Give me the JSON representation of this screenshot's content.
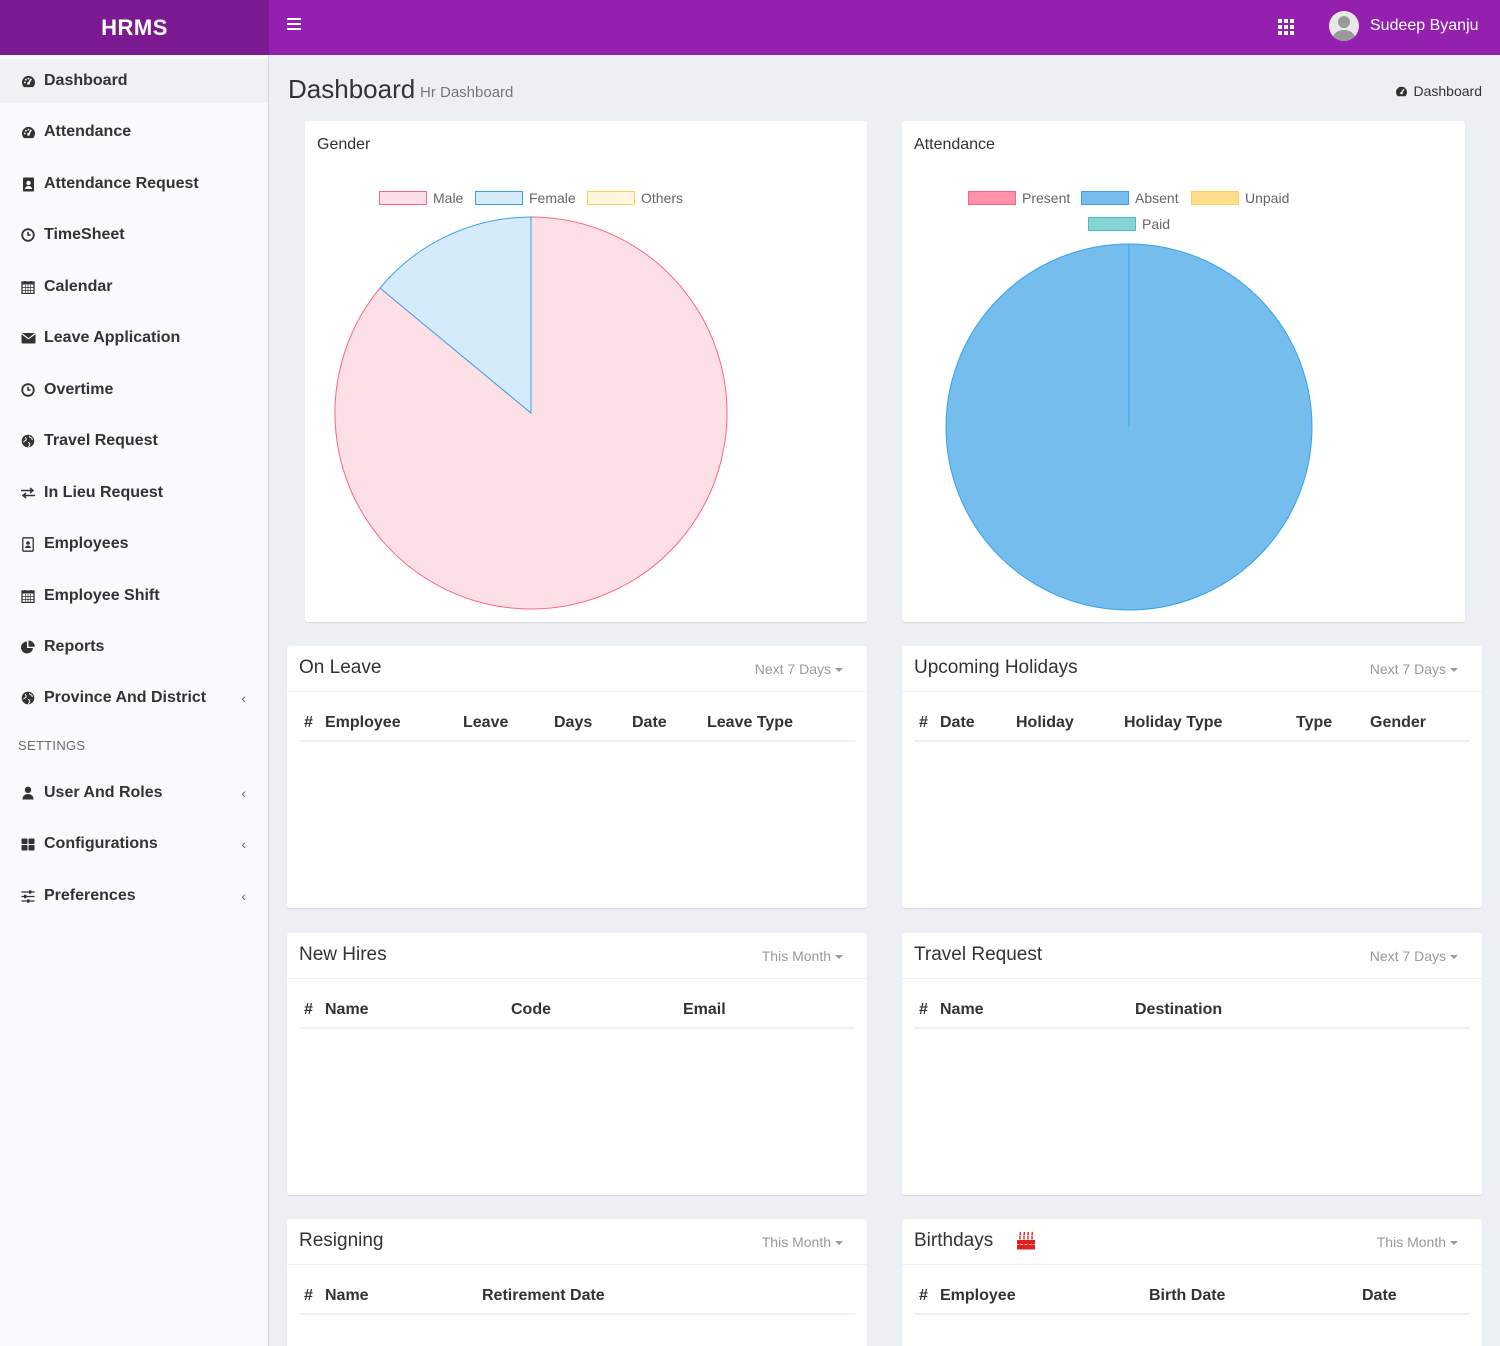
{
  "app": {
    "brand": "HRMS"
  },
  "topbar": {
    "user_name": "Sudeep Byanju"
  },
  "sidebar": {
    "items": [
      {
        "label": "Dashboard",
        "icon": "dashboard-icon",
        "active": true
      },
      {
        "label": "Attendance",
        "icon": "dashboard-icon"
      },
      {
        "label": "Attendance Request",
        "icon": "contact-book-icon"
      },
      {
        "label": "TimeSheet",
        "icon": "clock-icon"
      },
      {
        "label": "Calendar",
        "icon": "calendar-icon"
      },
      {
        "label": "Leave Application",
        "icon": "envelope-icon"
      },
      {
        "label": "Overtime",
        "icon": "clock-icon"
      },
      {
        "label": "Travel Request",
        "icon": "globe-icon"
      },
      {
        "label": "In Lieu Request",
        "icon": "exchange-icon"
      },
      {
        "label": "Employees",
        "icon": "id-badge-icon"
      },
      {
        "label": "Employee Shift",
        "icon": "calendar-icon"
      },
      {
        "label": "Reports",
        "icon": "pie-chart-icon"
      },
      {
        "label": "Province And District",
        "icon": "globe-icon",
        "has_children": true
      }
    ],
    "settings_header": "SETTINGS",
    "settings_items": [
      {
        "label": "User And Roles",
        "icon": "user-icon",
        "has_children": true
      },
      {
        "label": "Configurations",
        "icon": "th-large-icon",
        "has_children": true
      },
      {
        "label": "Preferences",
        "icon": "sliders-icon",
        "has_children": true
      }
    ]
  },
  "header": {
    "title": "Dashboard",
    "subtitle": "Hr Dashboard",
    "breadcrumb": "Dashboard"
  },
  "chart_data": [
    {
      "type": "pie",
      "title": "Gender",
      "categories": [
        "Male",
        "Female",
        "Others"
      ],
      "values": [
        86,
        14,
        0
      ],
      "colors": [
        "#ff6384",
        "#36a2eb",
        "#ffce56"
      ],
      "fill_colors": [
        "#fde0e6",
        "#d6ebf9",
        "#fff6dd"
      ],
      "legend": "top"
    },
    {
      "type": "pie",
      "title": "Attendance",
      "categories": [
        "Present",
        "Absent",
        "Unpaid",
        "Paid"
      ],
      "values": [
        0,
        100,
        0,
        0
      ],
      "colors": [
        "#ff6384",
        "#36a2eb",
        "#ffce56",
        "#4bc0c0"
      ],
      "fill_colors": [
        "#ff91a8",
        "#74bded",
        "#ffdd8c",
        "#86d4d4"
      ],
      "legend": "top"
    }
  ],
  "boxes": {
    "on_leave": {
      "title": "On Leave",
      "filter": "Next 7 Days",
      "columns": [
        "#",
        "Employee",
        "Leave",
        "Days",
        "Date",
        "Leave Type"
      ],
      "rows": []
    },
    "upcoming_holidays": {
      "title": "Upcoming Holidays",
      "filter": "Next 7 Days",
      "columns": [
        "#",
        "Date",
        "Holiday",
        "Holiday Type",
        "Type",
        "Gender"
      ],
      "rows": []
    },
    "new_hires": {
      "title": "New Hires",
      "filter": "This Month",
      "columns": [
        "#",
        "Name",
        "Code",
        "Email"
      ],
      "rows": []
    },
    "travel_request": {
      "title": "Travel Request",
      "filter": "Next 7 Days",
      "columns": [
        "#",
        "Name",
        "Destination"
      ],
      "rows": []
    },
    "resigning": {
      "title": "Resigning",
      "filter": "This Month",
      "columns": [
        "#",
        "Name",
        "Retirement Date"
      ],
      "rows": []
    },
    "birthdays": {
      "title": "Birthdays",
      "filter": "This Month",
      "icon": "birthday-cake-icon",
      "columns": [
        "#",
        "Employee",
        "Birth Date",
        "Date"
      ],
      "rows": []
    }
  }
}
